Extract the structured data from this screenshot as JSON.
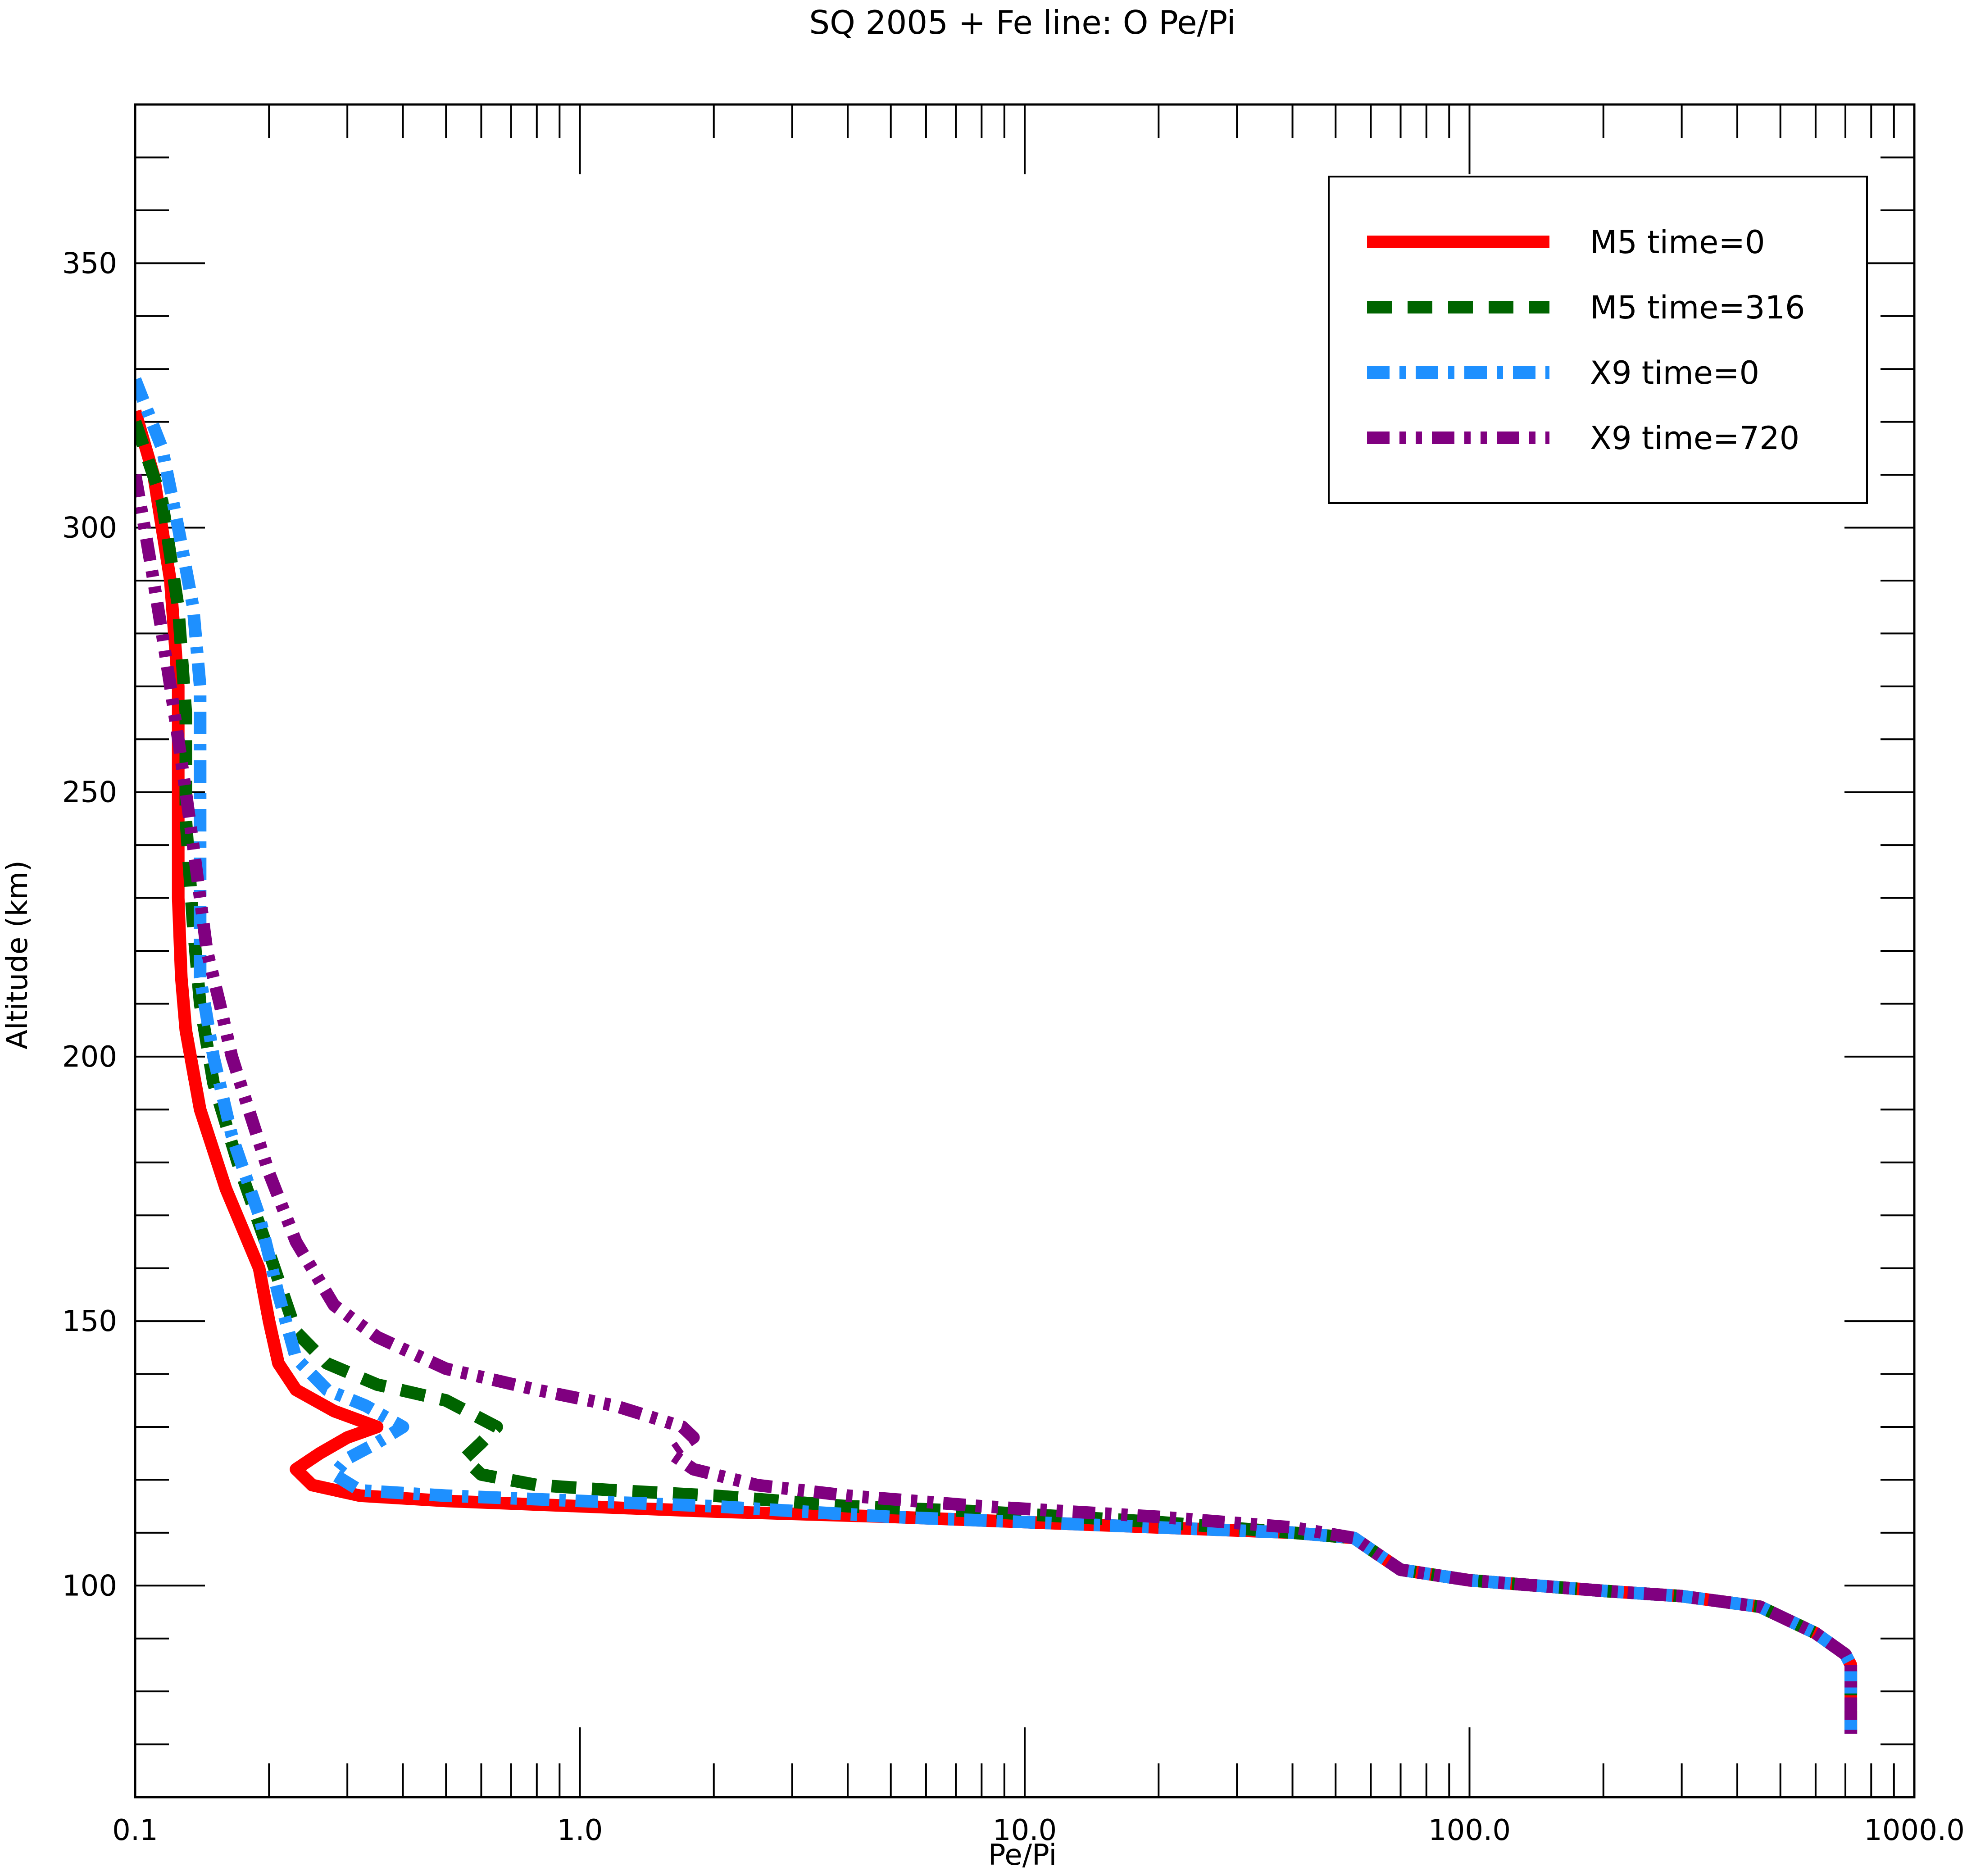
{
  "chart_data": {
    "type": "line",
    "title": "SQ 2005 + Fe line: O Pe/Pi",
    "xlabel": "Pe/Pi",
    "ylabel": "Altitude (km)",
    "xscale": "log",
    "xlim": [
      0.1,
      1000.0
    ],
    "ylim": [
      60,
      380
    ],
    "x_tick_labels": [
      "0.1",
      "1.0",
      "10.0",
      "100.0",
      "1000.0"
    ],
    "y_tick_labels": [
      "100",
      "150",
      "200",
      "250",
      "300",
      "350"
    ],
    "grid": false,
    "legend_position": "top-right",
    "series": [
      {
        "name": "M5 time=0",
        "color": "#ff0000",
        "style": "solid",
        "points": [
          [
            0.1,
            322
          ],
          [
            0.11,
            310
          ],
          [
            0.12,
            290
          ],
          [
            0.125,
            270
          ],
          [
            0.125,
            250
          ],
          [
            0.125,
            230
          ],
          [
            0.127,
            215
          ],
          [
            0.13,
            205
          ],
          [
            0.14,
            190
          ],
          [
            0.16,
            175
          ],
          [
            0.19,
            160
          ],
          [
            0.2,
            150
          ],
          [
            0.21,
            142
          ],
          [
            0.23,
            137
          ],
          [
            0.28,
            133
          ],
          [
            0.35,
            130
          ],
          [
            0.3,
            128
          ],
          [
            0.26,
            125
          ],
          [
            0.23,
            122
          ],
          [
            0.25,
            119
          ],
          [
            0.32,
            117
          ],
          [
            0.5,
            116
          ],
          [
            1.0,
            115
          ],
          [
            2.0,
            114
          ],
          [
            5.0,
            113
          ],
          [
            10,
            112
          ],
          [
            20,
            111
          ],
          [
            40,
            110
          ],
          [
            55,
            109
          ],
          [
            62,
            106
          ],
          [
            70,
            103
          ],
          [
            100,
            101
          ],
          [
            200,
            99
          ],
          [
            300,
            98
          ],
          [
            450,
            96
          ],
          [
            600,
            91
          ],
          [
            700,
            87
          ],
          [
            720,
            85
          ],
          [
            720,
            72
          ]
        ]
      },
      {
        "name": "M5 time=316",
        "color": "#006400",
        "style": "dashed",
        "points": [
          [
            0.1,
            320
          ],
          [
            0.115,
            305
          ],
          [
            0.125,
            285
          ],
          [
            0.13,
            265
          ],
          [
            0.13,
            245
          ],
          [
            0.135,
            225
          ],
          [
            0.14,
            210
          ],
          [
            0.15,
            195
          ],
          [
            0.17,
            180
          ],
          [
            0.2,
            163
          ],
          [
            0.23,
            148
          ],
          [
            0.27,
            142
          ],
          [
            0.35,
            138
          ],
          [
            0.5,
            135
          ],
          [
            0.65,
            130
          ],
          [
            0.6,
            127
          ],
          [
            0.55,
            124
          ],
          [
            0.6,
            121
          ],
          [
            0.8,
            119
          ],
          [
            1.2,
            118
          ],
          [
            2.0,
            117
          ],
          [
            4.0,
            115
          ],
          [
            8,
            114
          ],
          [
            20,
            112
          ],
          [
            40,
            110
          ],
          [
            55,
            109
          ],
          [
            62,
            106
          ],
          [
            70,
            103
          ],
          [
            100,
            101
          ],
          [
            200,
            99
          ],
          [
            300,
            98
          ],
          [
            450,
            96
          ],
          [
            600,
            91
          ],
          [
            700,
            87
          ],
          [
            720,
            85
          ],
          [
            720,
            72
          ]
        ]
      },
      {
        "name": "X9 time=0",
        "color": "#1e90ff",
        "style": "dash-dot",
        "points": [
          [
            0.1,
            328
          ],
          [
            0.115,
            315
          ],
          [
            0.125,
            300
          ],
          [
            0.135,
            285
          ],
          [
            0.14,
            270
          ],
          [
            0.14,
            250
          ],
          [
            0.14,
            230
          ],
          [
            0.14,
            215
          ],
          [
            0.15,
            200
          ],
          [
            0.165,
            185
          ],
          [
            0.19,
            170
          ],
          [
            0.21,
            155
          ],
          [
            0.23,
            143
          ],
          [
            0.27,
            137
          ],
          [
            0.33,
            134
          ],
          [
            0.4,
            130
          ],
          [
            0.35,
            127
          ],
          [
            0.3,
            124
          ],
          [
            0.28,
            121
          ],
          [
            0.32,
            118
          ],
          [
            0.5,
            117
          ],
          [
            1.0,
            116
          ],
          [
            2.0,
            115
          ],
          [
            5.0,
            113
          ],
          [
            10,
            112
          ],
          [
            20,
            111
          ],
          [
            40,
            110
          ],
          [
            55,
            109
          ],
          [
            62,
            106
          ],
          [
            70,
            103
          ],
          [
            100,
            101
          ],
          [
            200,
            99
          ],
          [
            300,
            98
          ],
          [
            450,
            96
          ],
          [
            600,
            91
          ],
          [
            700,
            87
          ],
          [
            720,
            85
          ],
          [
            720,
            72
          ]
        ]
      },
      {
        "name": "X9 time=720",
        "color": "#800080",
        "style": "dash-dot-dot",
        "points": [
          [
            0.1,
            310
          ],
          [
            0.105,
            300
          ],
          [
            0.11,
            290
          ],
          [
            0.115,
            280
          ],
          [
            0.12,
            270
          ],
          [
            0.125,
            260
          ],
          [
            0.13,
            250
          ],
          [
            0.135,
            240
          ],
          [
            0.14,
            230
          ],
          [
            0.145,
            220
          ],
          [
            0.155,
            210
          ],
          [
            0.165,
            200
          ],
          [
            0.18,
            190
          ],
          [
            0.2,
            178
          ],
          [
            0.23,
            165
          ],
          [
            0.28,
            153
          ],
          [
            0.35,
            147
          ],
          [
            0.5,
            141
          ],
          [
            0.8,
            137
          ],
          [
            1.2,
            134
          ],
          [
            1.7,
            130
          ],
          [
            1.8,
            128
          ],
          [
            1.6,
            125
          ],
          [
            1.8,
            122
          ],
          [
            2.5,
            119
          ],
          [
            4.0,
            117
          ],
          [
            8,
            115
          ],
          [
            20,
            113
          ],
          [
            40,
            111
          ],
          [
            55,
            109
          ],
          [
            62,
            106
          ],
          [
            70,
            103
          ],
          [
            100,
            101
          ],
          [
            200,
            99
          ],
          [
            300,
            98
          ],
          [
            450,
            96
          ],
          [
            600,
            91
          ],
          [
            700,
            87
          ],
          [
            720,
            85
          ],
          [
            720,
            72
          ]
        ]
      }
    ]
  }
}
